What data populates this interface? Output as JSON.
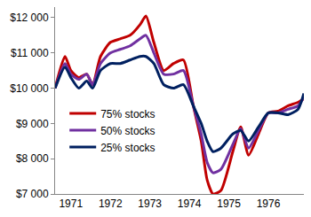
{
  "chart_data": {
    "type": "line",
    "x": [
      1970.6,
      1970.85,
      1971.0,
      1971.2,
      1971.4,
      1971.55,
      1971.75,
      1972.0,
      1972.25,
      1972.5,
      1972.75,
      1972.9,
      1973.1,
      1973.35,
      1973.6,
      1973.85,
      1974.1,
      1974.3,
      1974.45,
      1974.6,
      1974.8,
      1975.1,
      1975.3,
      1975.5,
      1975.75,
      1976.0,
      1976.25,
      1976.5,
      1976.75,
      1976.9
    ],
    "series": [
      {
        "name": "75% stocks",
        "color": "#c00000",
        "values": [
          10000,
          10900,
          10500,
          10300,
          10400,
          10100,
          10900,
          11300,
          11400,
          11500,
          11800,
          12050,
          11300,
          10500,
          10700,
          10800,
          9500,
          8500,
          7400,
          7000,
          7100,
          8200,
          8900,
          8100,
          8700,
          9300,
          9350,
          9500,
          9600,
          9700
        ]
      },
      {
        "name": "50% stocks",
        "color": "#7030a0",
        "values": [
          10000,
          10700,
          10400,
          10250,
          10400,
          10100,
          10700,
          11000,
          11100,
          11200,
          11400,
          11500,
          11000,
          10400,
          10400,
          10500,
          9500,
          8700,
          7900,
          7600,
          7700,
          8400,
          8850,
          8300,
          8800,
          9300,
          9300,
          9400,
          9500,
          9750
        ]
      },
      {
        "name": "25% stocks",
        "color": "#002060",
        "values": [
          10000,
          10600,
          10300,
          10000,
          10200,
          10000,
          10500,
          10700,
          10700,
          10800,
          10900,
          10900,
          10700,
          10100,
          10000,
          10100,
          9500,
          9000,
          8500,
          8200,
          8300,
          8700,
          8800,
          8500,
          8900,
          9300,
          9300,
          9250,
          9400,
          9850
        ]
      }
    ],
    "xlim": [
      1970.6,
      1976.9
    ],
    "xticks": [
      1971,
      1972,
      1973,
      1974,
      1975,
      1976
    ],
    "ylim": [
      7000,
      12300
    ],
    "yticks": [
      {
        "value": 7000,
        "label": "$7 000"
      },
      {
        "value": 8000,
        "label": "$8 000"
      },
      {
        "value": 9000,
        "label": "$9 000"
      },
      {
        "value": 10000,
        "label": "$10 000"
      },
      {
        "value": 11000,
        "label": "$11 000"
      },
      {
        "value": 12000,
        "label": "$12 000"
      }
    ],
    "grid": false,
    "legend": "left"
  }
}
